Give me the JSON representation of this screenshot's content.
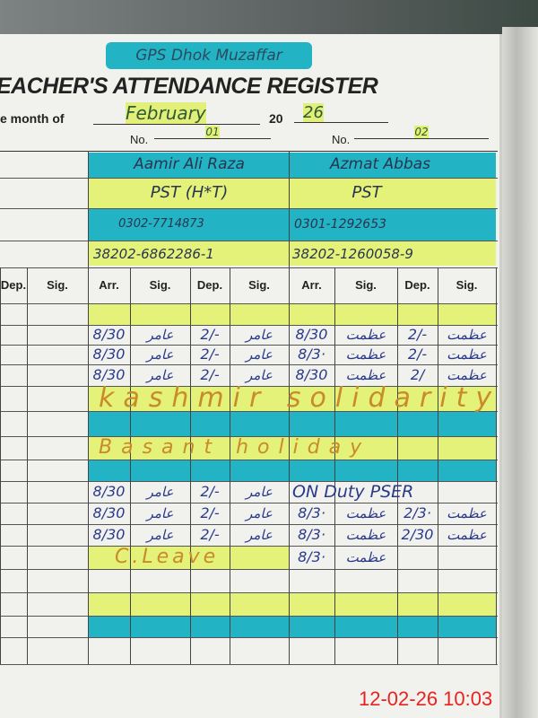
{
  "school_name": "GPS Dhok Muzaffar",
  "register_title": "EACHER'S ATTENDANCE REGISTER",
  "month_label": "e month of",
  "month_value": "February",
  "year_prefix": "20",
  "year_value": "26",
  "no_label": "No.",
  "teachers": [
    {
      "no": "01",
      "name": "Aamir Ali Raza",
      "designation": "PST (H*T)",
      "phone": "0302-7714873",
      "cnic": "38202-6862286-1"
    },
    {
      "no": "02",
      "name": "Azmat Abbas",
      "designation": "PST",
      "phone": "0301-1292653",
      "cnic": "38202-1260058-9"
    }
  ],
  "column_headers": [
    "Dep.",
    "Sig.",
    "Arr.",
    "Sig.",
    "Dep.",
    "Sig.",
    "Arr.",
    "Sig.",
    "Dep.",
    "Sig."
  ],
  "rows": [
    {
      "cells": [
        "",
        "",
        "",
        "",
        "",
        "",
        "",
        ""
      ],
      "band": "yellow"
    },
    {
      "cells": [
        "8/30",
        "عامر",
        "2/-",
        "عامر",
        "8/30",
        "عظمت",
        "2/-",
        "عظمت"
      ]
    },
    {
      "cells": [
        "8/30",
        "عامر",
        "2/-",
        "عامر",
        "8/3·",
        "عظمت",
        "2/-",
        "عظمت"
      ]
    },
    {
      "cells": [
        "8/30",
        "عامر",
        "2/-",
        "عامر",
        "8/30",
        "عظمت",
        "2/",
        "عظمت"
      ]
    },
    {
      "text": "kashmir solidarity",
      "band": "yellow"
    },
    {
      "text": "",
      "band": "blue"
    },
    {
      "text": "Basant holiday",
      "band": "yellow"
    },
    {
      "text": "",
      "band": "blue"
    },
    {
      "cells": [
        "8/30",
        "عامر",
        "2/-",
        "عامر"
      ],
      "right_text": "ON Duty PSER"
    },
    {
      "cells": [
        "8/30",
        "عامر",
        "2/-",
        "عامر",
        "8/3·",
        "عظمت",
        "2/3·",
        "عظمت"
      ]
    },
    {
      "cells": [
        "8/30",
        "عامر",
        "2/-",
        "عامر",
        "8/3·",
        "عظمت",
        "2/30",
        "عظمت"
      ]
    },
    {
      "left_text": "C.Leave",
      "cells": [
        "",
        "",
        "",
        "",
        "8/3·",
        "عظمت",
        "",
        ""
      ],
      "band": "yellow-left"
    },
    {
      "cells": [
        "",
        "",
        "",
        "",
        "",
        "",
        "",
        ""
      ]
    },
    {
      "text": "",
      "band": "yellow"
    },
    {
      "text": "",
      "band": "blue"
    },
    {
      "cells": [
        "",
        "",
        "",
        "",
        "",
        "",
        "",
        ""
      ]
    }
  ],
  "colors": {
    "blue_highlight": "#22b3c4",
    "yellow_highlight": "#e4f27a",
    "ink": "#2a3a8a",
    "orange_ink": "#c98a2a"
  },
  "timestamp": "12-02-26  10:03"
}
